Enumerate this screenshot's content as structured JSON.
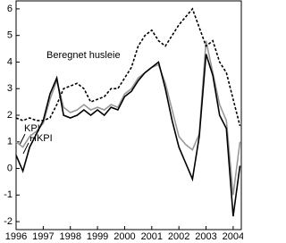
{
  "chart_data": {
    "type": "line",
    "x": [
      1996,
      1996.25,
      1996.5,
      1996.75,
      1997,
      1997.25,
      1997.5,
      1997.75,
      1998,
      1998.25,
      1998.5,
      1998.75,
      1999,
      1999.25,
      1999.5,
      1999.75,
      2000,
      2000.25,
      2000.5,
      2000.75,
      2001,
      2001.25,
      2001.5,
      2001.75,
      2002,
      2002.25,
      2002.5,
      2002.75,
      2003,
      2003.25,
      2003.5,
      2003.75,
      2004,
      2004.25
    ],
    "series": [
      {
        "name": "KPI",
        "color": "#999999",
        "dash": "none",
        "values": [
          1.0,
          0.8,
          1.2,
          1.4,
          1.7,
          2.6,
          3.3,
          2.3,
          2.1,
          2.2,
          2.4,
          2.2,
          2.3,
          2.2,
          2.4,
          2.3,
          2.8,
          3.0,
          3.4,
          3.6,
          3.8,
          3.9,
          3.2,
          2.2,
          1.2,
          0.9,
          0.7,
          1.3,
          4.8,
          3.6,
          2.4,
          1.8,
          -1.0,
          1.0
        ]
      },
      {
        "name": "HKPI",
        "color": "#000000",
        "dash": "none",
        "values": [
          0.5,
          -0.1,
          0.8,
          1.3,
          1.8,
          2.8,
          3.4,
          2.0,
          1.9,
          2.0,
          2.2,
          2.0,
          2.2,
          2.0,
          2.3,
          2.2,
          2.7,
          2.9,
          3.3,
          3.6,
          3.8,
          4.0,
          3.0,
          1.8,
          0.8,
          0.2,
          -0.4,
          1.2,
          4.3,
          3.5,
          2.0,
          1.5,
          -1.8,
          0.1
        ]
      },
      {
        "name": "Beregnet husleie",
        "color": "#000000",
        "dash": "3 2",
        "values": [
          1.9,
          1.8,
          1.9,
          1.8,
          1.8,
          1.9,
          2.4,
          3.0,
          3.1,
          3.2,
          3.0,
          2.5,
          2.6,
          2.7,
          3.0,
          3.0,
          3.4,
          3.8,
          4.6,
          5.0,
          5.2,
          4.8,
          4.6,
          5.0,
          5.4,
          5.7,
          6.0,
          5.3,
          4.6,
          4.8,
          4.0,
          3.6,
          2.6,
          1.6
        ]
      }
    ],
    "xlim": [
      1996,
      2004.3
    ],
    "xticks": [
      1996,
      1997,
      1998,
      1999,
      2000,
      2001,
      2002,
      2003,
      2004
    ],
    "ylim": [
      -2.3,
      6.3
    ],
    "yticks": [
      -2,
      -1,
      0,
      1,
      2,
      3,
      4,
      5,
      6
    ]
  }
}
